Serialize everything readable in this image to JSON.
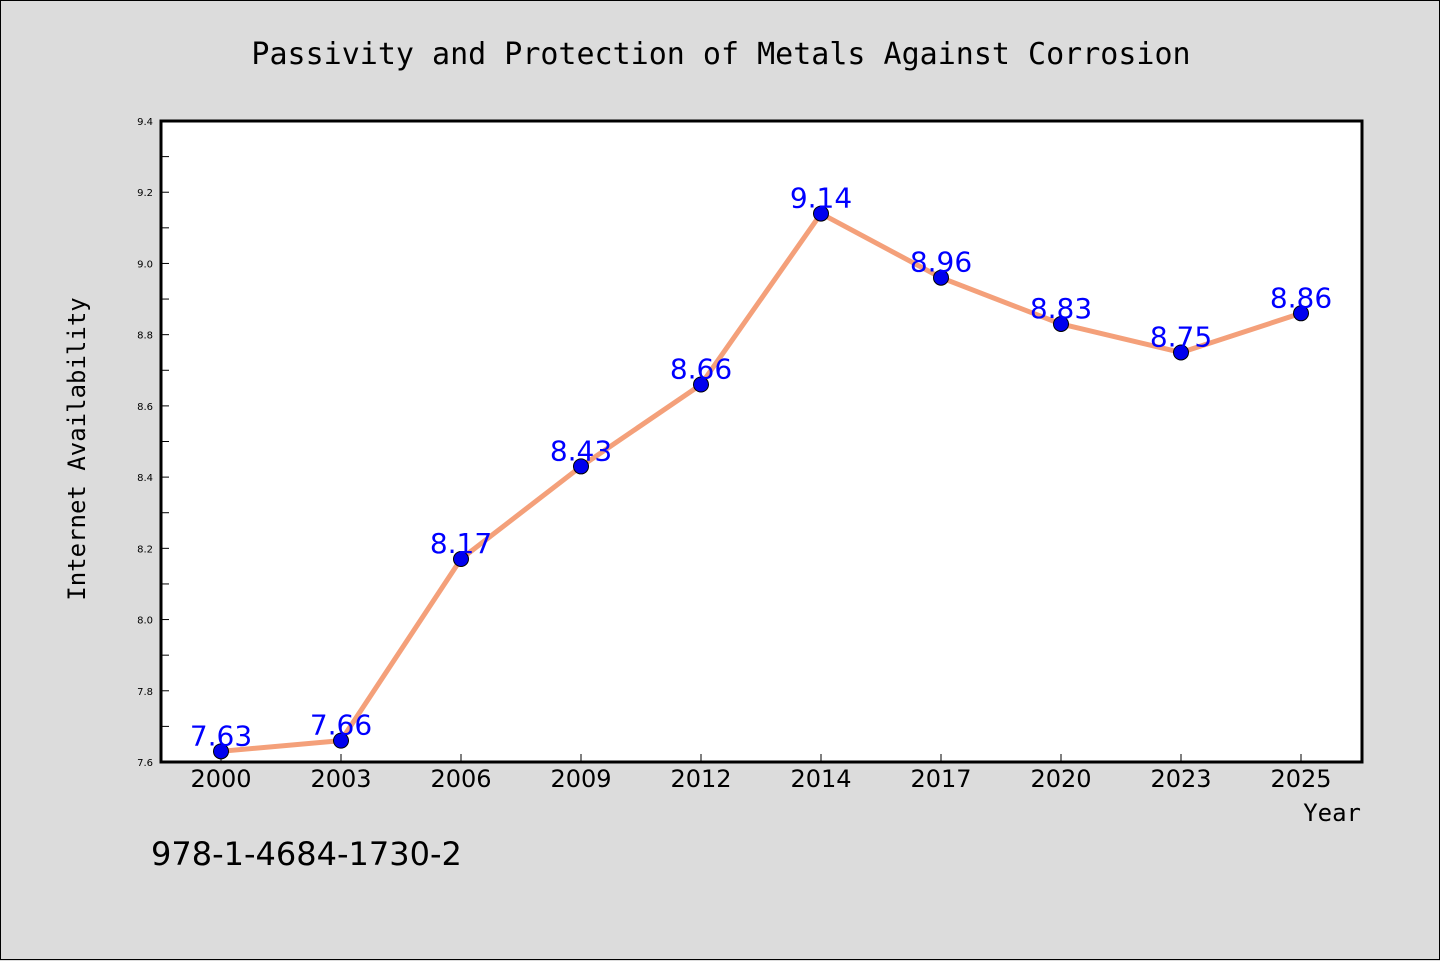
{
  "chart_data": {
    "type": "line",
    "title": "Passivity and Protection of Metals Against Corrosion",
    "xlabel": "Year",
    "ylabel": "Internet Availability",
    "categories": [
      "2000",
      "2003",
      "2006",
      "2009",
      "2012",
      "2014",
      "2017",
      "2020",
      "2023",
      "2025"
    ],
    "series": [
      {
        "values": [
          7.63,
          7.66,
          8.17,
          8.43,
          8.66,
          9.14,
          8.96,
          8.83,
          8.75,
          8.86
        ],
        "labels": [
          "7.63",
          "7.66",
          "8.17",
          "8.43",
          "8.66",
          "9.14",
          "8.96",
          "8.83",
          "8.75",
          "8.86"
        ]
      }
    ],
    "ylim": [
      7.6,
      9.4
    ],
    "yticks": [
      "7.6",
      "7.8",
      "8.0",
      "8.2",
      "8.4",
      "8.6",
      "8.8",
      "9.0",
      "9.2",
      "9.4"
    ],
    "grid": false,
    "colors": {
      "line": "#f4a07a",
      "marker": "#0000ee",
      "label": "#0000ff"
    }
  },
  "footer_text": "978-1-4684-1730-2"
}
